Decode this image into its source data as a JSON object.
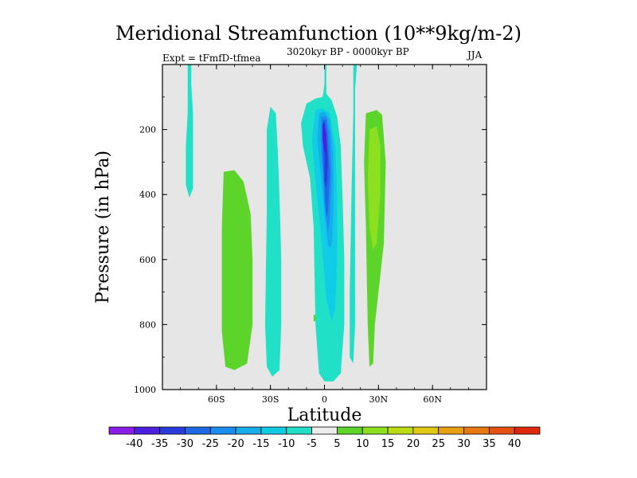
{
  "chart_data": {
    "type": "heatmap",
    "title": "Meridional Streamfunction (10**9kg/m-2)",
    "subtitle_left": "Expt = tFmfD-tfmea",
    "subtitle_center": "3020kyr BP - 0000kyr BP",
    "subtitle_right": "JJA",
    "xlabel": "Latitude",
    "ylabel": "Pressure (in hPa)",
    "xlim": [
      -90,
      90
    ],
    "ylim": [
      1000,
      0
    ],
    "x_ticks": [
      {
        "value": -60,
        "label": "60S"
      },
      {
        "value": -30,
        "label": "30S"
      },
      {
        "value": 0,
        "label": "0"
      },
      {
        "value": 30,
        "label": "30N"
      },
      {
        "value": 60,
        "label": "60N"
      }
    ],
    "y_ticks": [
      {
        "value": 200,
        "label": "200"
      },
      {
        "value": 400,
        "label": "400"
      },
      {
        "value": 600,
        "label": "600"
      },
      {
        "value": 800,
        "label": "800"
      },
      {
        "value": 1000,
        "label": "1000"
      }
    ],
    "colorbar": {
      "labels": [
        "-40",
        "-35",
        "-30",
        "-25",
        "-20",
        "-15",
        "-10",
        "-5",
        "5",
        "10",
        "15",
        "20",
        "25",
        "30",
        "35",
        "40"
      ],
      "colors": [
        "#8a1ee8",
        "#4b1ee0",
        "#2a3ddc",
        "#1e6ae6",
        "#1a8ef0",
        "#16aeea",
        "#10cce6",
        "#20e0c8",
        "#ececec",
        "#5cd42a",
        "#8ce020",
        "#bcdc12",
        "#e0c810",
        "#e8a010",
        "#e87810",
        "#e85010",
        "#e02808"
      ]
    },
    "regions": [
      {
        "level": "-5",
        "color": "#20e0c8",
        "points": [
          [
            -76,
            0
          ],
          [
            -74,
            0
          ],
          [
            -74,
            60
          ],
          [
            -73,
            150
          ],
          [
            -73,
            380
          ],
          [
            -75,
            410
          ],
          [
            -77,
            370
          ],
          [
            -77,
            250
          ],
          [
            -76,
            150
          ],
          [
            -76,
            50
          ]
        ]
      },
      {
        "level": "5",
        "color": "#5cd42a",
        "points": [
          [
            -56,
            330
          ],
          [
            -50,
            325
          ],
          [
            -45,
            360
          ],
          [
            -41,
            460
          ],
          [
            -40,
            600
          ],
          [
            -40,
            800
          ],
          [
            -43,
            920
          ],
          [
            -50,
            940
          ],
          [
            -55,
            930
          ],
          [
            -57,
            820
          ],
          [
            -57,
            500
          ]
        ]
      },
      {
        "level": "-5",
        "color": "#20e0c8",
        "points": [
          [
            -30,
            130
          ],
          [
            -27,
            150
          ],
          [
            -26,
            260
          ],
          [
            -25,
            400
          ],
          [
            -24,
            600
          ],
          [
            -24,
            800
          ],
          [
            -25,
            940
          ],
          [
            -29,
            960
          ],
          [
            -32,
            930
          ],
          [
            -33,
            800
          ],
          [
            -32,
            450
          ],
          [
            -32,
            200
          ]
        ]
      },
      {
        "level": "-5",
        "color": "#20e0c8",
        "points": [
          [
            0,
            0
          ],
          [
            1,
            0
          ],
          [
            1,
            90
          ],
          [
            4,
            110
          ],
          [
            7,
            160
          ],
          [
            9,
            250
          ],
          [
            10,
            400
          ],
          [
            11,
            600
          ],
          [
            11,
            800
          ],
          [
            9,
            950
          ],
          [
            5,
            975
          ],
          [
            0,
            975
          ],
          [
            -3,
            950
          ],
          [
            -5,
            800
          ],
          [
            -6,
            500
          ],
          [
            -8,
            350
          ],
          [
            -12,
            250
          ],
          [
            -13,
            180
          ],
          [
            -10,
            120
          ],
          [
            -5,
            105
          ],
          [
            -1,
            100
          ],
          [
            0,
            60
          ]
        ]
      },
      {
        "level": "-5",
        "color": "#20e0c8",
        "points": [
          [
            16,
            0
          ],
          [
            18,
            0
          ],
          [
            17,
            80
          ],
          [
            17,
            200
          ],
          [
            17,
            500
          ],
          [
            17,
            800
          ],
          [
            16,
            920
          ],
          [
            14,
            900
          ],
          [
            14,
            700
          ],
          [
            15,
            400
          ],
          [
            16,
            150
          ]
        ]
      },
      {
        "level": "-10",
        "color": "#10cce6",
        "points": [
          [
            -5,
            140
          ],
          [
            -1,
            135
          ],
          [
            3,
            150
          ],
          [
            6,
            250
          ],
          [
            7,
            400
          ],
          [
            7,
            600
          ],
          [
            6,
            750
          ],
          [
            4,
            790
          ],
          [
            1,
            720
          ],
          [
            -2,
            520
          ],
          [
            -5,
            360
          ],
          [
            -7,
            230
          ]
        ]
      },
      {
        "level": "-15",
        "color": "#16aeea",
        "points": [
          [
            -3,
            150
          ],
          [
            0,
            145
          ],
          [
            3,
            170
          ],
          [
            5,
            280
          ],
          [
            5,
            450
          ],
          [
            4,
            560
          ],
          [
            2,
            560
          ],
          [
            0,
            460
          ],
          [
            -2,
            340
          ],
          [
            -4,
            230
          ]
        ]
      },
      {
        "level": "-20",
        "color": "#1a8ef0",
        "points": [
          [
            -2,
            160
          ],
          [
            1,
            160
          ],
          [
            3,
            210
          ],
          [
            4,
            330
          ],
          [
            3,
            470
          ],
          [
            2,
            520
          ],
          [
            0,
            430
          ],
          [
            -1,
            320
          ],
          [
            -2,
            240
          ]
        ]
      },
      {
        "level": "-25",
        "color": "#1e6ae6",
        "points": [
          [
            -1,
            170
          ],
          [
            1,
            170
          ],
          [
            2,
            230
          ],
          [
            3,
            330
          ],
          [
            2,
            450
          ],
          [
            1,
            470
          ],
          [
            0,
            380
          ],
          [
            -1,
            280
          ]
        ]
      },
      {
        "level": "-30",
        "color": "#2a3ddc",
        "points": [
          [
            -1,
            180
          ],
          [
            0,
            178
          ],
          [
            1,
            220
          ],
          [
            2,
            300
          ],
          [
            1,
            380
          ],
          [
            0,
            360
          ],
          [
            0,
            280
          ],
          [
            -1,
            230
          ]
        ]
      },
      {
        "level": "-35",
        "color": "#4b1ee0",
        "points": [
          [
            -1,
            185
          ],
          [
            0,
            182
          ],
          [
            1,
            215
          ],
          [
            1,
            270
          ],
          [
            0,
            270
          ],
          [
            -1,
            230
          ]
        ]
      },
      {
        "level": "5",
        "color": "#5cd42a",
        "points": [
          [
            23,
            150
          ],
          [
            29,
            140
          ],
          [
            32,
            155
          ],
          [
            34,
            300
          ],
          [
            33,
            550
          ],
          [
            30,
            700
          ],
          [
            28,
            800
          ],
          [
            27,
            920
          ],
          [
            25,
            930
          ],
          [
            24,
            800
          ],
          [
            23,
            500
          ],
          [
            22,
            300
          ]
        ]
      },
      {
        "level": "10",
        "color": "#8ce020",
        "points": [
          [
            25,
            200
          ],
          [
            29,
            190
          ],
          [
            31,
            250
          ],
          [
            31,
            400
          ],
          [
            29,
            550
          ],
          [
            27,
            570
          ],
          [
            25,
            500
          ],
          [
            24,
            350
          ]
        ]
      },
      {
        "level": "5",
        "color": "#5cd42a",
        "points": [
          [
            -6,
            770
          ],
          [
            -5,
            770
          ],
          [
            -5,
            790
          ],
          [
            -6,
            790
          ]
        ]
      }
    ]
  }
}
